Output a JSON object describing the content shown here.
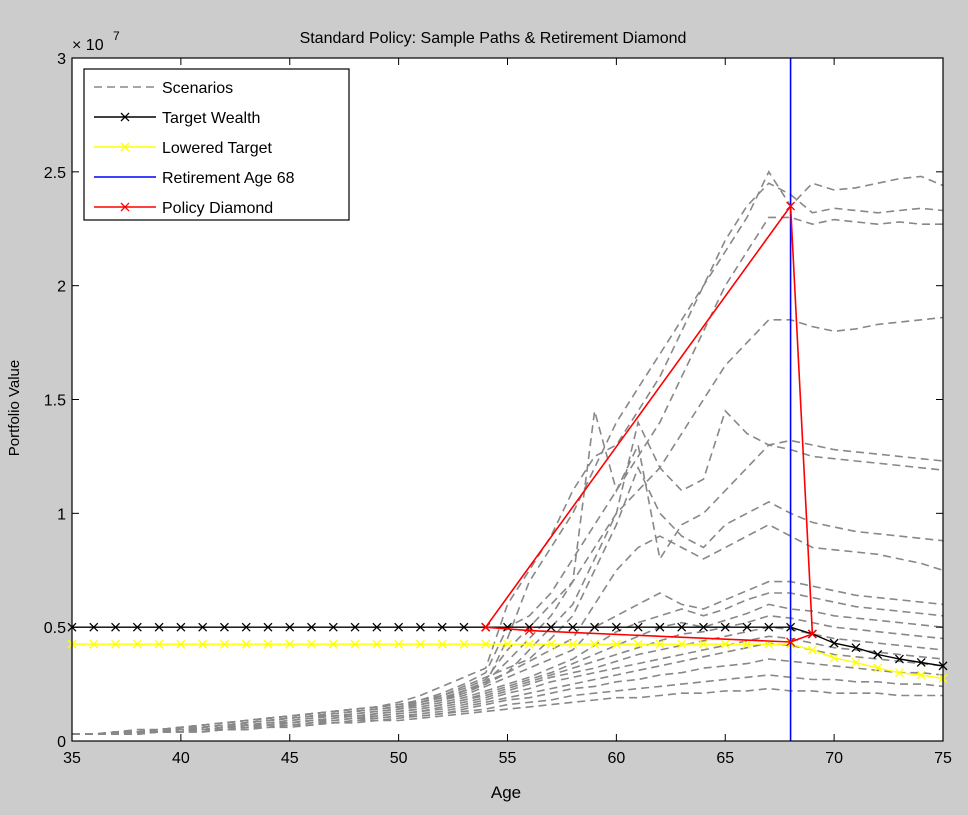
{
  "window": {
    "background": "#cccccc",
    "axes_background": "#ffffff"
  },
  "chart_data": {
    "type": "line",
    "title": "Standard Policy: Sample Paths & Retirement Diamond",
    "xlabel": "Age",
    "ylabel": "Portfolio Value",
    "exponent_label": "× 10",
    "exponent_power": "7",
    "xlim": [
      35,
      75
    ],
    "ylim": [
      0,
      3
    ],
    "x_ticks": [
      35,
      40,
      45,
      50,
      55,
      60,
      65,
      70,
      75
    ],
    "y_ticks": [
      0,
      0.5,
      1,
      1.5,
      2,
      2.5,
      3
    ],
    "y_tick_labels": [
      "0",
      "0.5",
      "1",
      "1.5",
      "2",
      "2.5",
      "3"
    ],
    "y_units_note": "values in units of 10^7",
    "grid": false,
    "legend": {
      "position": "top-left",
      "entries": [
        {
          "label": "Scenarios",
          "color": "#888888",
          "style": "dashed",
          "marker": "none"
        },
        {
          "label": "Target Wealth",
          "color": "#000000",
          "style": "solid",
          "marker": "x"
        },
        {
          "label": "Lowered Target",
          "color": "#ffff00",
          "style": "solid",
          "marker": "x"
        },
        {
          "label": "Retirement Age 68",
          "color": "#0000ff",
          "style": "solid",
          "marker": "none"
        },
        {
          "label": "Policy Diamond",
          "color": "#ff0000",
          "style": "solid",
          "marker": "x"
        }
      ]
    },
    "scenario_ages": [
      35,
      36,
      37,
      38,
      39,
      40,
      41,
      42,
      43,
      44,
      45,
      46,
      47,
      48,
      49,
      50,
      51,
      52,
      53,
      54,
      55,
      56,
      57,
      58,
      59,
      60,
      61,
      62,
      63,
      64,
      65,
      66,
      67,
      68,
      69,
      70,
      71,
      72,
      73,
      74,
      75
    ],
    "scenarios": [
      {
        "name": "Scenarios",
        "values": [
          0.03,
          0.03,
          0.04,
          0.04,
          0.05,
          0.06,
          0.07,
          0.08,
          0.09,
          0.1,
          0.11,
          0.12,
          0.13,
          0.14,
          0.15,
          0.16,
          0.17,
          0.19,
          0.22,
          0.25,
          0.45,
          0.7,
          0.85,
          1.0,
          1.2,
          1.4,
          1.55,
          1.7,
          1.85,
          2.0,
          2.15,
          2.3,
          2.5,
          2.35,
          2.45,
          2.42,
          2.43,
          2.45,
          2.47,
          2.48,
          2.44
        ]
      },
      {
        "values": [
          0.03,
          0.03,
          0.04,
          0.05,
          0.05,
          0.06,
          0.07,
          0.08,
          0.09,
          0.1,
          0.11,
          0.12,
          0.13,
          0.14,
          0.15,
          0.17,
          0.2,
          0.24,
          0.28,
          0.32,
          0.6,
          0.75,
          0.9,
          1.1,
          1.25,
          1.3,
          1.45,
          1.6,
          1.8,
          2.0,
          2.2,
          2.35,
          2.45,
          2.4,
          2.32,
          2.34,
          2.33,
          2.32,
          2.33,
          2.34,
          2.33
        ]
      },
      {
        "values": [
          0.03,
          0.03,
          0.04,
          0.04,
          0.05,
          0.06,
          0.07,
          0.08,
          0.09,
          0.1,
          0.11,
          0.12,
          0.13,
          0.14,
          0.15,
          0.16,
          0.18,
          0.21,
          0.25,
          0.3,
          0.5,
          0.55,
          0.65,
          0.8,
          0.95,
          1.1,
          1.25,
          1.4,
          1.6,
          1.8,
          2.0,
          2.15,
          2.3,
          2.3,
          2.27,
          2.29,
          2.28,
          2.27,
          2.28,
          2.27,
          2.27
        ]
      },
      {
        "values": [
          0.03,
          0.03,
          0.04,
          0.04,
          0.05,
          0.05,
          0.06,
          0.07,
          0.08,
          0.09,
          0.1,
          0.11,
          0.12,
          0.13,
          0.14,
          0.15,
          0.17,
          0.2,
          0.23,
          0.27,
          0.4,
          0.5,
          0.6,
          0.7,
          0.85,
          1.0,
          1.1,
          1.2,
          1.35,
          1.5,
          1.65,
          1.75,
          1.85,
          1.85,
          1.82,
          1.8,
          1.81,
          1.83,
          1.84,
          1.85,
          1.86
        ]
      },
      {
        "values": [
          0.03,
          0.03,
          0.04,
          0.04,
          0.05,
          0.06,
          0.06,
          0.07,
          0.08,
          0.09,
          0.1,
          0.11,
          0.12,
          0.13,
          0.14,
          0.15,
          0.17,
          0.19,
          0.22,
          0.26,
          0.35,
          0.45,
          0.55,
          0.7,
          1.45,
          1.1,
          1.3,
          0.8,
          0.95,
          1.0,
          1.1,
          1.2,
          1.3,
          1.32,
          1.3,
          1.28,
          1.27,
          1.26,
          1.25,
          1.24,
          1.23
        ]
      },
      {
        "values": [
          0.03,
          0.03,
          0.03,
          0.04,
          0.05,
          0.05,
          0.06,
          0.07,
          0.08,
          0.09,
          0.1,
          0.11,
          0.12,
          0.13,
          0.14,
          0.15,
          0.16,
          0.18,
          0.21,
          0.25,
          0.3,
          0.4,
          0.5,
          0.6,
          0.8,
          1.0,
          1.4,
          1.2,
          1.1,
          1.15,
          1.45,
          1.35,
          1.3,
          1.28,
          1.25,
          1.24,
          1.23,
          1.22,
          1.21,
          1.2,
          1.19
        ]
      },
      {
        "values": [
          0.03,
          0.03,
          0.04,
          0.04,
          0.05,
          0.06,
          0.07,
          0.08,
          0.09,
          0.1,
          0.11,
          0.12,
          0.13,
          0.14,
          0.15,
          0.16,
          0.18,
          0.2,
          0.24,
          0.28,
          0.32,
          0.36,
          0.45,
          0.55,
          0.75,
          0.95,
          1.2,
          1.0,
          0.9,
          0.85,
          0.95,
          1.0,
          1.05,
          1.0,
          0.96,
          0.94,
          0.92,
          0.91,
          0.9,
          0.89,
          0.88
        ]
      },
      {
        "values": [
          0.03,
          0.03,
          0.04,
          0.04,
          0.05,
          0.05,
          0.06,
          0.07,
          0.08,
          0.09,
          0.1,
          0.11,
          0.12,
          0.13,
          0.14,
          0.15,
          0.16,
          0.18,
          0.22,
          0.26,
          0.3,
          0.35,
          0.4,
          0.45,
          0.6,
          0.75,
          0.85,
          0.9,
          0.85,
          0.8,
          0.85,
          0.9,
          0.95,
          0.9,
          0.85,
          0.84,
          0.83,
          0.82,
          0.8,
          0.78,
          0.75
        ]
      },
      {
        "values": [
          0.03,
          0.03,
          0.03,
          0.04,
          0.05,
          0.05,
          0.06,
          0.07,
          0.08,
          0.09,
          0.1,
          0.11,
          0.11,
          0.12,
          0.13,
          0.14,
          0.16,
          0.18,
          0.2,
          0.24,
          0.28,
          0.32,
          0.36,
          0.4,
          0.5,
          0.55,
          0.6,
          0.65,
          0.6,
          0.58,
          0.62,
          0.66,
          0.7,
          0.7,
          0.68,
          0.66,
          0.64,
          0.63,
          0.62,
          0.61,
          0.6
        ]
      },
      {
        "values": [
          0.03,
          0.03,
          0.03,
          0.04,
          0.04,
          0.05,
          0.06,
          0.07,
          0.07,
          0.08,
          0.09,
          0.1,
          0.11,
          0.12,
          0.13,
          0.14,
          0.15,
          0.17,
          0.19,
          0.22,
          0.25,
          0.28,
          0.32,
          0.36,
          0.42,
          0.48,
          0.52,
          0.55,
          0.58,
          0.55,
          0.58,
          0.62,
          0.65,
          0.65,
          0.63,
          0.61,
          0.59,
          0.58,
          0.57,
          0.56,
          0.55
        ]
      },
      {
        "values": [
          0.03,
          0.03,
          0.03,
          0.04,
          0.04,
          0.05,
          0.05,
          0.06,
          0.07,
          0.08,
          0.09,
          0.1,
          0.11,
          0.11,
          0.12,
          0.13,
          0.14,
          0.16,
          0.18,
          0.21,
          0.24,
          0.27,
          0.3,
          0.34,
          0.38,
          0.42,
          0.46,
          0.5,
          0.52,
          0.5,
          0.53,
          0.56,
          0.6,
          0.58,
          0.57,
          0.55,
          0.54,
          0.53,
          0.52,
          0.51,
          0.5
        ]
      },
      {
        "values": [
          0.03,
          0.03,
          0.03,
          0.04,
          0.04,
          0.05,
          0.05,
          0.06,
          0.07,
          0.08,
          0.08,
          0.09,
          0.1,
          0.11,
          0.12,
          0.13,
          0.14,
          0.16,
          0.18,
          0.2,
          0.23,
          0.26,
          0.29,
          0.32,
          0.35,
          0.38,
          0.41,
          0.44,
          0.47,
          0.48,
          0.5,
          0.52,
          0.55,
          0.54,
          0.52,
          0.5,
          0.49,
          0.48,
          0.47,
          0.46,
          0.45
        ]
      },
      {
        "values": [
          0.03,
          0.03,
          0.03,
          0.04,
          0.04,
          0.05,
          0.05,
          0.06,
          0.07,
          0.07,
          0.08,
          0.09,
          0.1,
          0.11,
          0.11,
          0.12,
          0.13,
          0.15,
          0.17,
          0.19,
          0.22,
          0.25,
          0.28,
          0.3,
          0.32,
          0.35,
          0.38,
          0.4,
          0.42,
          0.44,
          0.46,
          0.48,
          0.5,
          0.49,
          0.47,
          0.45,
          0.44,
          0.43,
          0.42,
          0.41,
          0.4
        ]
      },
      {
        "values": [
          0.03,
          0.03,
          0.03,
          0.04,
          0.04,
          0.04,
          0.05,
          0.06,
          0.06,
          0.07,
          0.08,
          0.09,
          0.09,
          0.1,
          0.11,
          0.12,
          0.13,
          0.14,
          0.16,
          0.18,
          0.21,
          0.23,
          0.26,
          0.28,
          0.3,
          0.32,
          0.34,
          0.36,
          0.38,
          0.4,
          0.42,
          0.44,
          0.46,
          0.45,
          0.43,
          0.41,
          0.4,
          0.39,
          0.38,
          0.37,
          0.36
        ]
      },
      {
        "values": [
          0.03,
          0.03,
          0.03,
          0.03,
          0.04,
          0.04,
          0.05,
          0.05,
          0.06,
          0.07,
          0.07,
          0.08,
          0.09,
          0.1,
          0.1,
          0.11,
          0.12,
          0.13,
          0.15,
          0.17,
          0.19,
          0.21,
          0.23,
          0.25,
          0.27,
          0.29,
          0.31,
          0.33,
          0.35,
          0.37,
          0.39,
          0.41,
          0.43,
          0.42,
          0.4,
          0.38,
          0.37,
          0.36,
          0.35,
          0.34,
          0.33
        ]
      },
      {
        "values": [
          0.03,
          0.03,
          0.03,
          0.03,
          0.04,
          0.04,
          0.05,
          0.05,
          0.06,
          0.06,
          0.07,
          0.08,
          0.08,
          0.09,
          0.1,
          0.11,
          0.11,
          0.12,
          0.14,
          0.16,
          0.18,
          0.19,
          0.21,
          0.23,
          0.24,
          0.26,
          0.27,
          0.29,
          0.3,
          0.32,
          0.33,
          0.34,
          0.36,
          0.35,
          0.34,
          0.33,
          0.32,
          0.31,
          0.3,
          0.3,
          0.29
        ]
      },
      {
        "values": [
          0.03,
          0.03,
          0.03,
          0.03,
          0.04,
          0.04,
          0.04,
          0.05,
          0.05,
          0.06,
          0.07,
          0.07,
          0.08,
          0.09,
          0.09,
          0.1,
          0.11,
          0.12,
          0.13,
          0.14,
          0.16,
          0.17,
          0.18,
          0.2,
          0.21,
          0.22,
          0.23,
          0.24,
          0.25,
          0.26,
          0.27,
          0.28,
          0.29,
          0.28,
          0.27,
          0.27,
          0.26,
          0.26,
          0.25,
          0.25,
          0.24
        ]
      },
      {
        "values": [
          0.03,
          0.03,
          0.03,
          0.03,
          0.04,
          0.04,
          0.04,
          0.05,
          0.05,
          0.06,
          0.06,
          0.07,
          0.08,
          0.08,
          0.09,
          0.09,
          0.1,
          0.11,
          0.12,
          0.13,
          0.14,
          0.15,
          0.16,
          0.17,
          0.18,
          0.19,
          0.19,
          0.2,
          0.21,
          0.21,
          0.22,
          0.22,
          0.23,
          0.22,
          0.22,
          0.21,
          0.21,
          0.21,
          0.2,
          0.2,
          0.2
        ]
      }
    ],
    "target_wealth": {
      "name": "Target Wealth",
      "x": [
        35,
        36,
        37,
        38,
        39,
        40,
        41,
        42,
        43,
        44,
        45,
        46,
        47,
        48,
        49,
        50,
        51,
        52,
        53,
        54,
        55,
        56,
        57,
        58,
        59,
        60,
        61,
        62,
        63,
        64,
        65,
        66,
        67,
        68,
        69,
        70,
        71,
        72,
        73,
        74,
        75
      ],
      "values": [
        0.5,
        0.5,
        0.5,
        0.5,
        0.5,
        0.5,
        0.5,
        0.5,
        0.5,
        0.5,
        0.5,
        0.5,
        0.5,
        0.5,
        0.5,
        0.5,
        0.5,
        0.5,
        0.5,
        0.5,
        0.5,
        0.5,
        0.5,
        0.5,
        0.5,
        0.5,
        0.5,
        0.5,
        0.5,
        0.5,
        0.5,
        0.5,
        0.5,
        0.5,
        0.47,
        0.43,
        0.41,
        0.38,
        0.36,
        0.345,
        0.33
      ]
    },
    "lowered_target": {
      "name": "Lowered Target",
      "x": [
        35,
        36,
        37,
        38,
        39,
        40,
        41,
        42,
        43,
        44,
        45,
        46,
        47,
        48,
        49,
        50,
        51,
        52,
        53,
        54,
        55,
        56,
        57,
        58,
        59,
        60,
        61,
        62,
        63,
        64,
        65,
        66,
        67,
        68,
        69,
        70,
        71,
        72,
        73,
        74,
        75
      ],
      "values": [
        0.425,
        0.425,
        0.425,
        0.425,
        0.425,
        0.425,
        0.425,
        0.425,
        0.425,
        0.425,
        0.425,
        0.425,
        0.425,
        0.425,
        0.425,
        0.425,
        0.425,
        0.425,
        0.425,
        0.425,
        0.425,
        0.425,
        0.425,
        0.425,
        0.425,
        0.425,
        0.425,
        0.425,
        0.425,
        0.425,
        0.425,
        0.425,
        0.425,
        0.425,
        0.4,
        0.365,
        0.345,
        0.32,
        0.3,
        0.29,
        0.275
      ]
    },
    "retirement_age": {
      "name": "Retirement Age 68",
      "x": 68
    },
    "policy_diamond": {
      "name": "Policy Diamond",
      "points": [
        [
          54,
          0.5
        ],
        [
          68,
          2.35
        ],
        [
          69,
          0.47
        ],
        [
          68,
          0.435
        ],
        [
          56,
          0.485
        ],
        [
          54,
          0.5
        ]
      ]
    }
  }
}
